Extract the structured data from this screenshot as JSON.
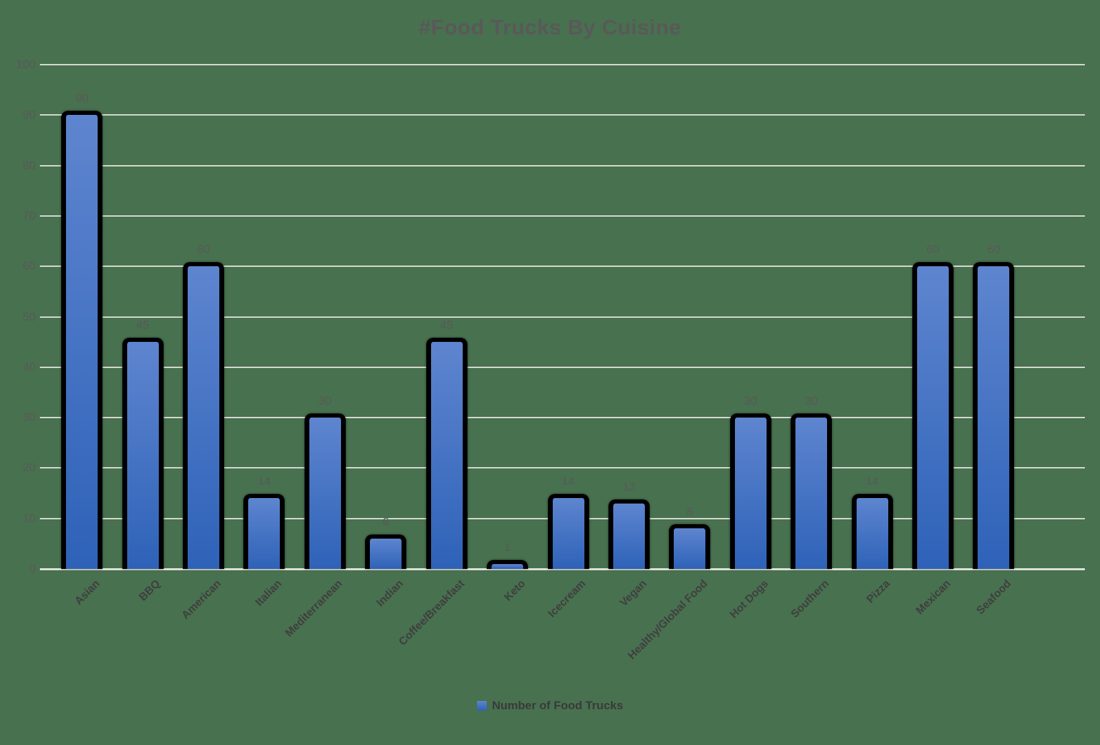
{
  "chart_data": {
    "type": "bar",
    "title": "#Food Trucks By Cuisine",
    "series_name": "Number of Food Trucks",
    "categories": [
      "Asian",
      "BBQ",
      "American",
      "Italian",
      "Mediterranean",
      "Indian",
      "Coffee/Breakfast",
      "Keto",
      "Icecream",
      "Vegan",
      "Healthy/Global Food",
      "Hot Dogs",
      "Southern",
      "Pizza",
      "Mexican",
      "Seafood"
    ],
    "values": [
      90,
      45,
      60,
      14,
      30,
      6,
      45,
      1,
      14,
      13,
      8,
      30,
      30,
      14,
      60,
      60
    ],
    "xlabel": "",
    "ylabel": "",
    "ylim": [
      0,
      100
    ],
    "yticks": [
      0,
      10,
      20,
      30,
      40,
      50,
      60,
      70,
      80,
      90,
      100
    ],
    "grid": true,
    "legend_position": "bottom",
    "colors": {
      "background": "#48714F",
      "gridline": "#D6DAD1",
      "axis_line": "#DEE2DA",
      "bar_gradient_top": "#5E85CF",
      "bar_gradient_bottom": "#2E62B8",
      "bar_outline": "#000000",
      "title_text": "#595959",
      "tick_text": "#595959",
      "category_text": "#3F3F3F",
      "data_label_text": "#595959",
      "legend_text": "#3A3A3A"
    }
  }
}
